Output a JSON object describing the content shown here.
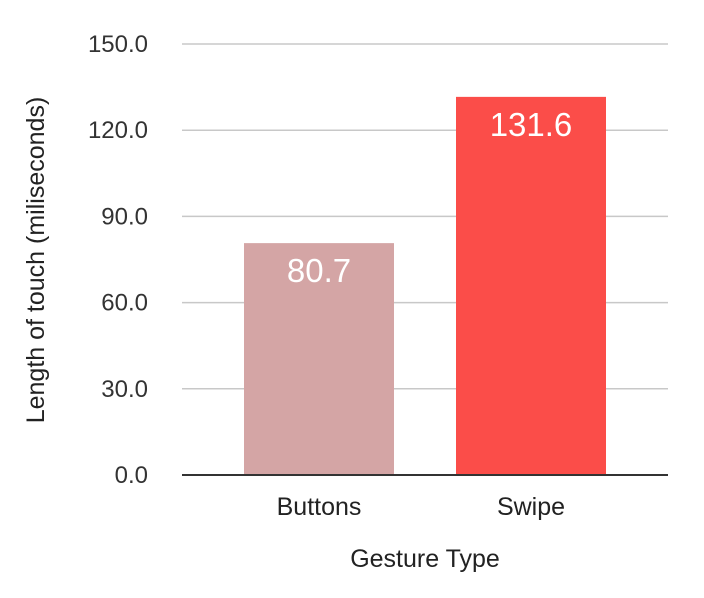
{
  "chart_data": {
    "type": "bar",
    "categories": [
      "Buttons",
      "Swipe"
    ],
    "values": [
      80.7,
      131.6
    ],
    "data_labels": [
      "80.7",
      "131.6"
    ],
    "colors": [
      "#d4a5a5",
      "#fb4d49"
    ],
    "xlabel": "Gesture Type",
    "ylabel": "Length of touch (miliseconds)",
    "ylim": [
      0,
      150
    ],
    "yticks": [
      0,
      30,
      60,
      90,
      120,
      150
    ],
    "ytick_labels": [
      "0.0",
      "30.0",
      "60.0",
      "90.0",
      "120.0",
      "150.0"
    ],
    "grid": true,
    "gridline_color": "#c8c8c8",
    "axis_color": "#333333"
  }
}
